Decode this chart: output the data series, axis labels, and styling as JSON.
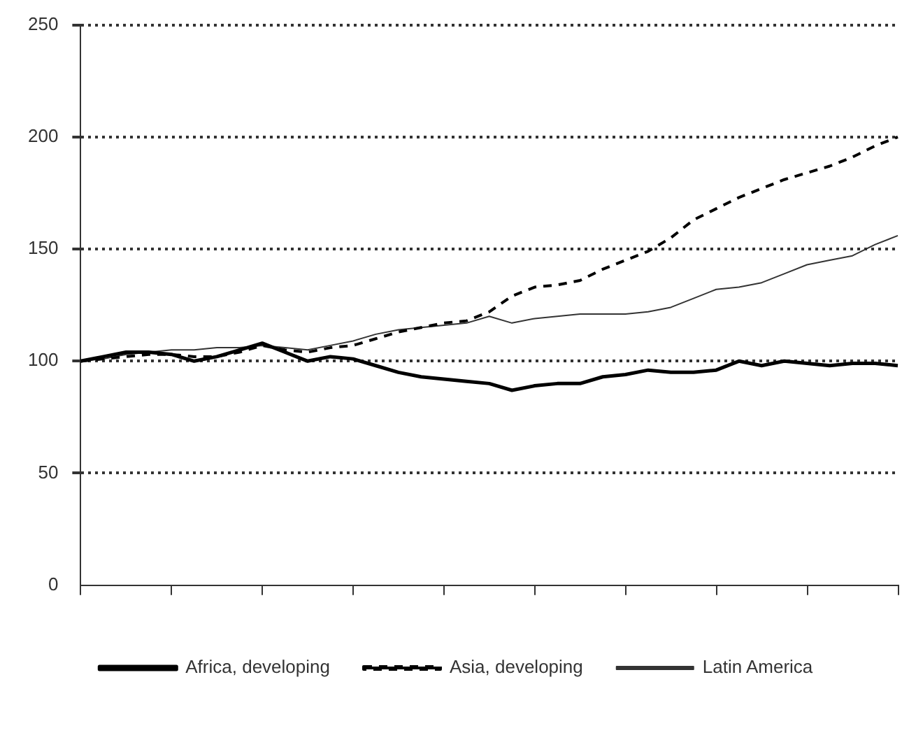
{
  "chart_data": {
    "type": "line",
    "categories": [
      null,
      null,
      null,
      null,
      null,
      null,
      null,
      null,
      null,
      null,
      null,
      null,
      null,
      null,
      null,
      null,
      null,
      null,
      null,
      null,
      null,
      null,
      null,
      null,
      null,
      null,
      null,
      null,
      null,
      null,
      null,
      null,
      null,
      null,
      null,
      null,
      null
    ],
    "ylim": [
      0,
      250
    ],
    "yticks": [
      0,
      50,
      100,
      150,
      200,
      250
    ],
    "grid": "y",
    "legend": "bottom",
    "marker": "none",
    "series": [
      {
        "name": "Africa, developing",
        "color": "#000000",
        "line_style": "solid",
        "values": [
          100,
          102,
          104,
          104,
          103,
          100,
          102,
          105,
          108,
          104,
          100,
          102,
          101,
          98,
          95,
          93,
          92,
          91,
          90,
          87,
          89,
          90,
          90,
          93,
          94,
          96,
          95,
          95,
          96,
          100,
          98,
          100,
          99,
          98,
          99,
          99,
          98
        ]
      },
      {
        "name": "Asia, developing",
        "color": "#000000",
        "line_style": "dashed",
        "values": [
          100,
          101,
          102,
          103,
          103,
          102,
          102,
          104,
          107,
          105,
          104,
          106,
          107,
          110,
          113,
          115,
          117,
          118,
          122,
          129,
          133,
          134,
          136,
          141,
          145,
          149,
          155,
          163,
          168,
          173,
          177,
          181,
          184,
          187,
          191,
          196,
          200
        ]
      },
      {
        "name": "Latin America",
        "color": "#333333",
        "line_style": "solid",
        "values": [
          100,
          101,
          103,
          104,
          105,
          105,
          106,
          106,
          107,
          106,
          105,
          107,
          109,
          112,
          114,
          115,
          116,
          117,
          120,
          117,
          119,
          120,
          121,
          121,
          121,
          122,
          124,
          128,
          132,
          133,
          135,
          139,
          143,
          145,
          147,
          152,
          156
        ]
      }
    ]
  }
}
